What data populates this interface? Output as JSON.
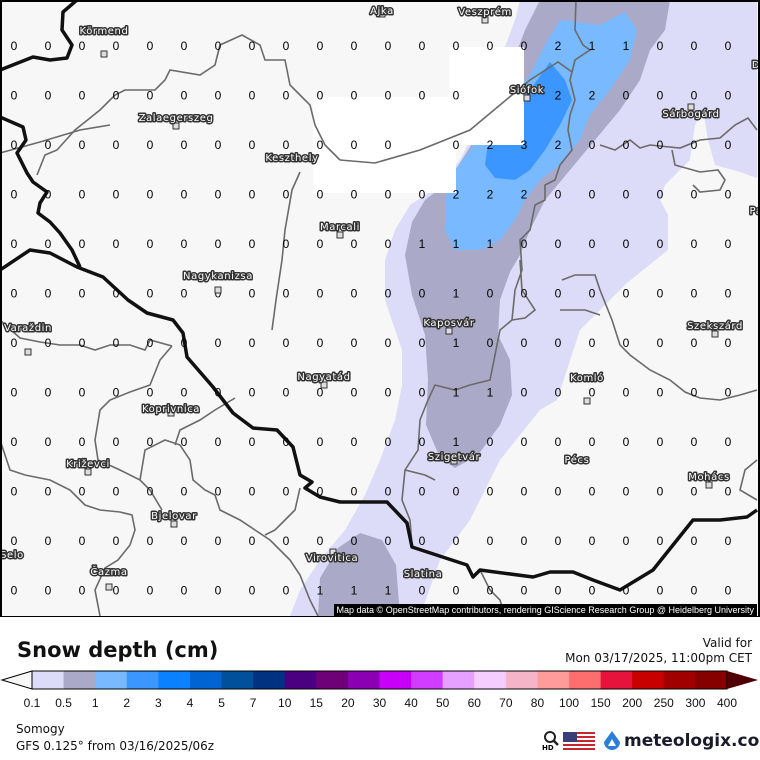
{
  "map": {
    "grid_values": [
      [
        "0",
        "0",
        "0",
        "0",
        "0",
        "0",
        "0",
        "0",
        "0",
        "0",
        "0",
        "0",
        "0",
        "0",
        "0",
        "0",
        "2",
        "1",
        "1",
        "0",
        "0",
        "0"
      ],
      [
        "0",
        "0",
        "0",
        "0",
        "0",
        "0",
        "0",
        "0",
        "0",
        "0",
        "0",
        "0",
        "0",
        "0",
        "",
        "",
        "2",
        "2",
        "0",
        "0",
        "0",
        "0"
      ],
      [
        "0",
        "0",
        "0",
        "0",
        "0",
        "0",
        "0",
        "0",
        "0",
        "0",
        "0",
        "0",
        "",
        "0",
        "2",
        "3",
        "2",
        "0",
        "0",
        "0",
        "0",
        "0"
      ],
      [
        "0",
        "0",
        "0",
        "0",
        "0",
        "0",
        "0",
        "0",
        "0",
        "0",
        "0",
        "0",
        "0",
        "2",
        "2",
        "2",
        "0",
        "0",
        "0",
        "0",
        "0",
        "0"
      ],
      [
        "0",
        "0",
        "0",
        "0",
        "0",
        "0",
        "0",
        "0",
        "0",
        "0",
        "0",
        "0",
        "1",
        "1",
        "1",
        "0",
        "0",
        "0",
        "0",
        "0",
        "0",
        "0"
      ],
      [
        "0",
        "0",
        "0",
        "0",
        "0",
        "0",
        "0",
        "0",
        "0",
        "0",
        "0",
        "0",
        "0",
        "1",
        "0",
        "0",
        "0",
        "0",
        "0",
        "0",
        "0",
        "0"
      ],
      [
        "0",
        "0",
        "0",
        "0",
        "0",
        "0",
        "0",
        "0",
        "0",
        "0",
        "0",
        "0",
        "0",
        "1",
        "0",
        "0",
        "0",
        "0",
        "0",
        "0",
        "0",
        "0"
      ],
      [
        "0",
        "0",
        "0",
        "0",
        "0",
        "0",
        "0",
        "0",
        "0",
        "0",
        "0",
        "0",
        "0",
        "1",
        "1",
        "0",
        "0",
        "0",
        "0",
        "0",
        "0",
        "0"
      ],
      [
        "0",
        "0",
        "0",
        "0",
        "0",
        "0",
        "0",
        "0",
        "0",
        "0",
        "0",
        "0",
        "0",
        "1",
        "0",
        "0",
        "0",
        "0",
        "0",
        "0",
        "0",
        "0"
      ],
      [
        "0",
        "0",
        "0",
        "0",
        "0",
        "0",
        "0",
        "0",
        "0",
        "0",
        "0",
        "0",
        "0",
        "0",
        "0",
        "0",
        "0",
        "0",
        "0",
        "0",
        "0",
        "0"
      ],
      [
        "0",
        "0",
        "0",
        "0",
        "0",
        "0",
        "0",
        "0",
        "0",
        "0",
        "0",
        "0",
        "0",
        "0",
        "0",
        "0",
        "0",
        "0",
        "0",
        "0",
        "0",
        "0"
      ],
      [
        "0",
        "0",
        "0",
        "0",
        "0",
        "0",
        "0",
        "0",
        "0",
        "1",
        "1",
        "1",
        "0",
        "0",
        "0",
        "0",
        "0",
        "0",
        "0",
        "0",
        "0",
        "0"
      ]
    ],
    "cities": [
      "Ajka",
      "Veszprém",
      "Körmend",
      "Siófok",
      "Sárbogárd",
      "Zalaegerszeg",
      "Keszthely",
      "Marcali",
      "Nagykanizsa",
      "Kaposvár",
      "Szekszárd",
      "Varaždin",
      "Nagyatád",
      "Koprivnica",
      "Komló",
      "Pécs",
      "Szigetvár",
      "Križevci",
      "Mohács",
      "Bjelovar",
      "Virovitica",
      "Selo",
      "Čazma",
      "Slatina",
      "D",
      "Pa"
    ],
    "attribution": "Map data © OpenStreetMap contributors, rendering GIScience Research Group @ Heidelberg University",
    "background_color": "#f7f7f7"
  },
  "header": {
    "title": "Snow depth (cm)",
    "valid_label": "Valid for",
    "valid_time": "Mon 03/17/2025, 11:00pm CET"
  },
  "legend": {
    "ticks": [
      "0.1",
      "0.5",
      "1",
      "2",
      "3",
      "4",
      "5",
      "7",
      "10",
      "15",
      "20",
      "30",
      "40",
      "50",
      "60",
      "70",
      "80",
      "100",
      "150",
      "200",
      "250",
      "300",
      "400"
    ],
    "colors": [
      "#dcdcf8",
      "#aaaac8",
      "#78b9ff",
      "#3c96ff",
      "#0a82ff",
      "#0064d2",
      "#00509b",
      "#003282",
      "#4b0082",
      "#6e0078",
      "#8c00b4",
      "#c800fa",
      "#d23cff",
      "#e6a0ff",
      "#f5cdff",
      "#f5b4c8",
      "#ff9b9b",
      "#ff6e6e",
      "#e6143c",
      "#c80000",
      "#a00000",
      "#870000"
    ],
    "under_color": "#f7f7f7",
    "over_color": "#500000"
  },
  "footer": {
    "region": "Somogy",
    "model": "GFS 0.125° from  03/16/2025/06z",
    "hd_label": "HD",
    "brand": "meteologix.com"
  }
}
